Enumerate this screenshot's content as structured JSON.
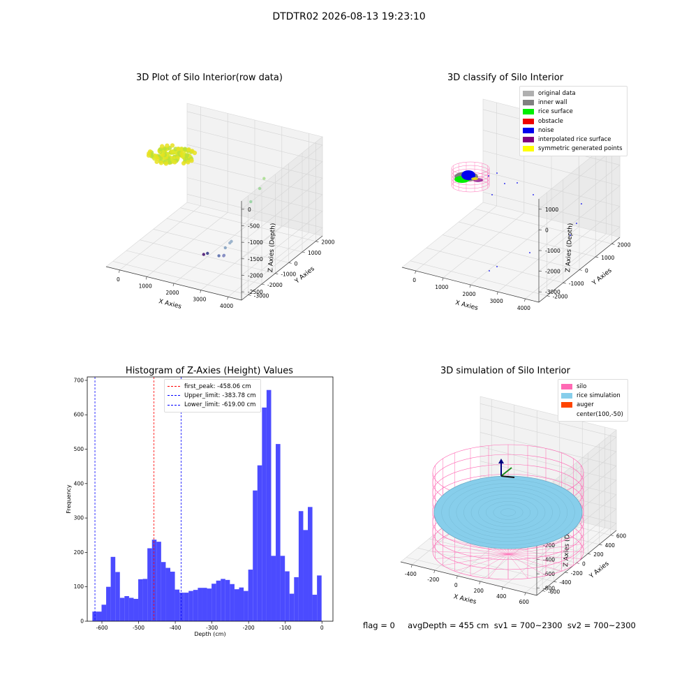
{
  "figure_title": "DTDTR02 2026-08-13 19:23:10",
  "status_text": "flag = 0     avgDepth = 455 cm  sv1 = 700~2300  sv2 = 700~2300",
  "chart_data": [
    {
      "type": "scatter",
      "title": "3D Plot of Silo Interior(row data)",
      "xlabel": "X Axies",
      "ylabel": "Y Axies",
      "zlabel": "Z Axies (Depth)",
      "x_ticks": [
        "0",
        "1000",
        "2000",
        "3000",
        "4000"
      ],
      "y_ticks": [
        "-3000",
        "-2000",
        "-1000",
        "0",
        "1000",
        "2000"
      ],
      "z_ticks": [
        "0",
        "-500",
        "-1000",
        "-1500",
        "-2000",
        "-2500"
      ],
      "points": [
        {
          "x": 3500,
          "y": 1500,
          "z": -1700,
          "color": "#9db4cc"
        },
        {
          "x": 3450,
          "y": 1400,
          "z": -1800,
          "color": "#9db4cc"
        },
        {
          "x": 3300,
          "y": 1100,
          "z": -2100,
          "color": "#8fa9c6"
        },
        {
          "x": 3100,
          "y": 900,
          "z": -2500,
          "color": "#7f8fc0"
        },
        {
          "x": 3050,
          "y": 850,
          "z": -2550,
          "color": "#8a8fc4"
        },
        {
          "x": 2700,
          "y": 400,
          "z": -2800,
          "color": "#6a7cb4"
        },
        {
          "x": 2400,
          "y": -300,
          "z": -3000,
          "color": "#4b4f94"
        },
        {
          "x": 2350,
          "y": -500,
          "z": -3100,
          "color": "#5b2c80"
        },
        {
          "x": 1900,
          "y": 1200,
          "z": -1100,
          "color": "#9fd6a8"
        },
        {
          "x": 1500,
          "y": 1300,
          "z": -800,
          "color": "#a5d8a0"
        },
        {
          "x": 1100,
          "y": 1200,
          "z": -650,
          "color": "#b1e09a"
        }
      ]
    },
    {
      "type": "scatter",
      "title": "3D classify of Silo Interior",
      "xlabel": "X Axies",
      "ylabel": "Y Axies",
      "zlabel": "Z Axies (Depth)",
      "x_ticks": [
        "0",
        "1000",
        "2000",
        "3000",
        "4000"
      ],
      "y_ticks": [
        "-2000",
        "-1000",
        "0",
        "1000",
        "2000"
      ],
      "z_ticks": [
        "1000",
        "0",
        "-1000",
        "-2000",
        "-3000"
      ],
      "legend": [
        {
          "label": "original data",
          "color": "#b0b0b0"
        },
        {
          "label": "inner wall",
          "color": "#808080"
        },
        {
          "label": "rice surface",
          "color": "#00ee00"
        },
        {
          "label": "obstacle",
          "color": "#ee0000"
        },
        {
          "label": "noise",
          "color": "#0000ee"
        },
        {
          "label": "interpolated rice surface",
          "color": "#800080"
        },
        {
          "label": "symmetric generated points",
          "color": "#ffff00"
        }
      ]
    },
    {
      "type": "bar",
      "title": "Histogram of Z-Axies (Height) Values",
      "xlabel": "Depth (cm)",
      "ylabel": "Frequency",
      "xlim": [
        -640,
        30
      ],
      "ylim": [
        0,
        710
      ],
      "x_ticks": [
        -600,
        -500,
        -400,
        -300,
        -200,
        -100,
        0
      ],
      "y_ticks": [
        0,
        100,
        200,
        300,
        400,
        500,
        600,
        700
      ],
      "bin_start": -626,
      "bin_width": 12.5,
      "values": [
        28,
        28,
        48,
        100,
        187,
        143,
        68,
        73,
        68,
        65,
        122,
        123,
        212,
        237,
        231,
        172,
        155,
        144,
        92,
        83,
        83,
        88,
        91,
        97,
        97,
        95,
        109,
        118,
        123,
        120,
        108,
        93,
        98,
        88,
        150,
        380,
        453,
        621,
        672,
        190,
        515,
        190,
        145,
        80,
        128,
        320,
        265,
        332,
        77,
        133
      ],
      "bar_color": "#4b4bff",
      "reference_lines": [
        {
          "label": "first_peak: -458.06 cm",
          "x": -458.06,
          "color": "#ff0000"
        },
        {
          "label": "Upper_limit: -383.78 cm",
          "x": -383.78,
          "color": "#0000ff"
        },
        {
          "label": "Lower_limit: -619.00 cm",
          "x": -619.0,
          "color": "#0000ff"
        }
      ]
    },
    {
      "type": "scatter",
      "title": "3D simulation of Silo Interior",
      "xlabel": "X Axies",
      "ylabel": "Y Axies",
      "zlabel": "Z Axies (Depth)",
      "x_ticks": [
        "-400",
        "-200",
        "0",
        "200",
        "400",
        "600"
      ],
      "y_ticks": [
        "-600",
        "-400",
        "-200",
        "0",
        "200",
        "400",
        "600"
      ],
      "z_ticks": [
        "400",
        "200",
        "0",
        "-200",
        "-400",
        "-600",
        "-800"
      ],
      "legend": [
        {
          "label": "silo",
          "color": "#ff69b4"
        },
        {
          "label": "rice simulation",
          "color": "#87ceeb"
        },
        {
          "label": "auger",
          "color": "#ff4500"
        },
        {
          "label": "center(100,-50)",
          "color": ""
        }
      ]
    }
  ]
}
